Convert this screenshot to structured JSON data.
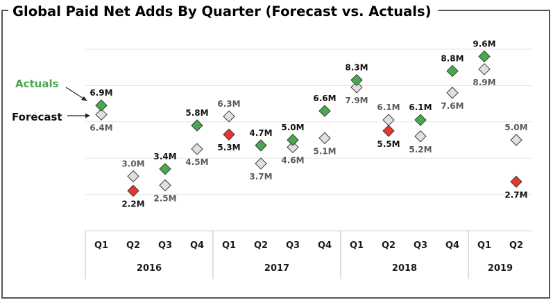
{
  "chart_data": {
    "type": "scatter",
    "title": "Global Paid Net Adds By Quarter (Forecast vs. Actuals)",
    "xlabel": "",
    "ylabel": "",
    "unit": "M",
    "ylim": [
      0,
      10
    ],
    "grid": true,
    "gridlines": [
      2,
      4,
      6,
      8,
      10
    ],
    "legend": {
      "placement": "left",
      "entries": [
        {
          "name": "Actuals",
          "color": "#4aa84f"
        },
        {
          "name": "Forecast",
          "color": "#e0e0e0"
        }
      ]
    },
    "colors": {
      "actual_beat": "#4aa84f",
      "actual_miss": "#e8372a",
      "forecast": "#e0e0e0",
      "outline": "#3a3a3a",
      "grid": "#e6e6e6",
      "axis": "#bdbdbd",
      "frame": "#555555"
    },
    "years": [
      {
        "label": "2016",
        "quarters": 4
      },
      {
        "label": "2017",
        "quarters": 4
      },
      {
        "label": "2018",
        "quarters": 4
      },
      {
        "label": "2019",
        "quarters": 2
      }
    ],
    "categories": [
      "Q1",
      "Q2",
      "Q3",
      "Q4",
      "Q1",
      "Q2",
      "Q3",
      "Q4",
      "Q1",
      "Q2",
      "Q3",
      "Q4",
      "Q1",
      "Q2"
    ],
    "series": [
      {
        "name": "Actuals",
        "values": [
          6.9,
          2.2,
          3.4,
          5.8,
          5.3,
          4.7,
          5.0,
          6.6,
          8.3,
          5.5,
          6.1,
          8.8,
          9.6,
          2.7
        ]
      },
      {
        "name": "Forecast",
        "values": [
          6.4,
          3.0,
          2.5,
          4.5,
          6.3,
          3.7,
          4.6,
          5.1,
          7.9,
          6.1,
          5.2,
          7.6,
          8.9,
          5.0
        ]
      }
    ],
    "labels": {
      "Actuals": [
        "6.9M",
        "2.2M",
        "3.4M",
        "5.8M",
        "5.3M",
        "4.7M",
        "5.0M",
        "6.6M",
        "8.3M",
        "5.5M",
        "6.1M",
        "8.8M",
        "9.6M",
        "2.7M"
      ],
      "Forecast": [
        "6.4M",
        "3.0M",
        "2.5M",
        "4.5M",
        "6.3M",
        "3.7M",
        "4.6M",
        "5.1M",
        "7.9M",
        "6.1M",
        "5.2M",
        "7.6M",
        "8.9M",
        "5.0M"
      ]
    },
    "annotations": [
      {
        "text": "Actuals",
        "points_to": "Actuals 2016 Q1"
      },
      {
        "text": "Forecast",
        "points_to": "Forecast 2016 Q1"
      }
    ]
  }
}
